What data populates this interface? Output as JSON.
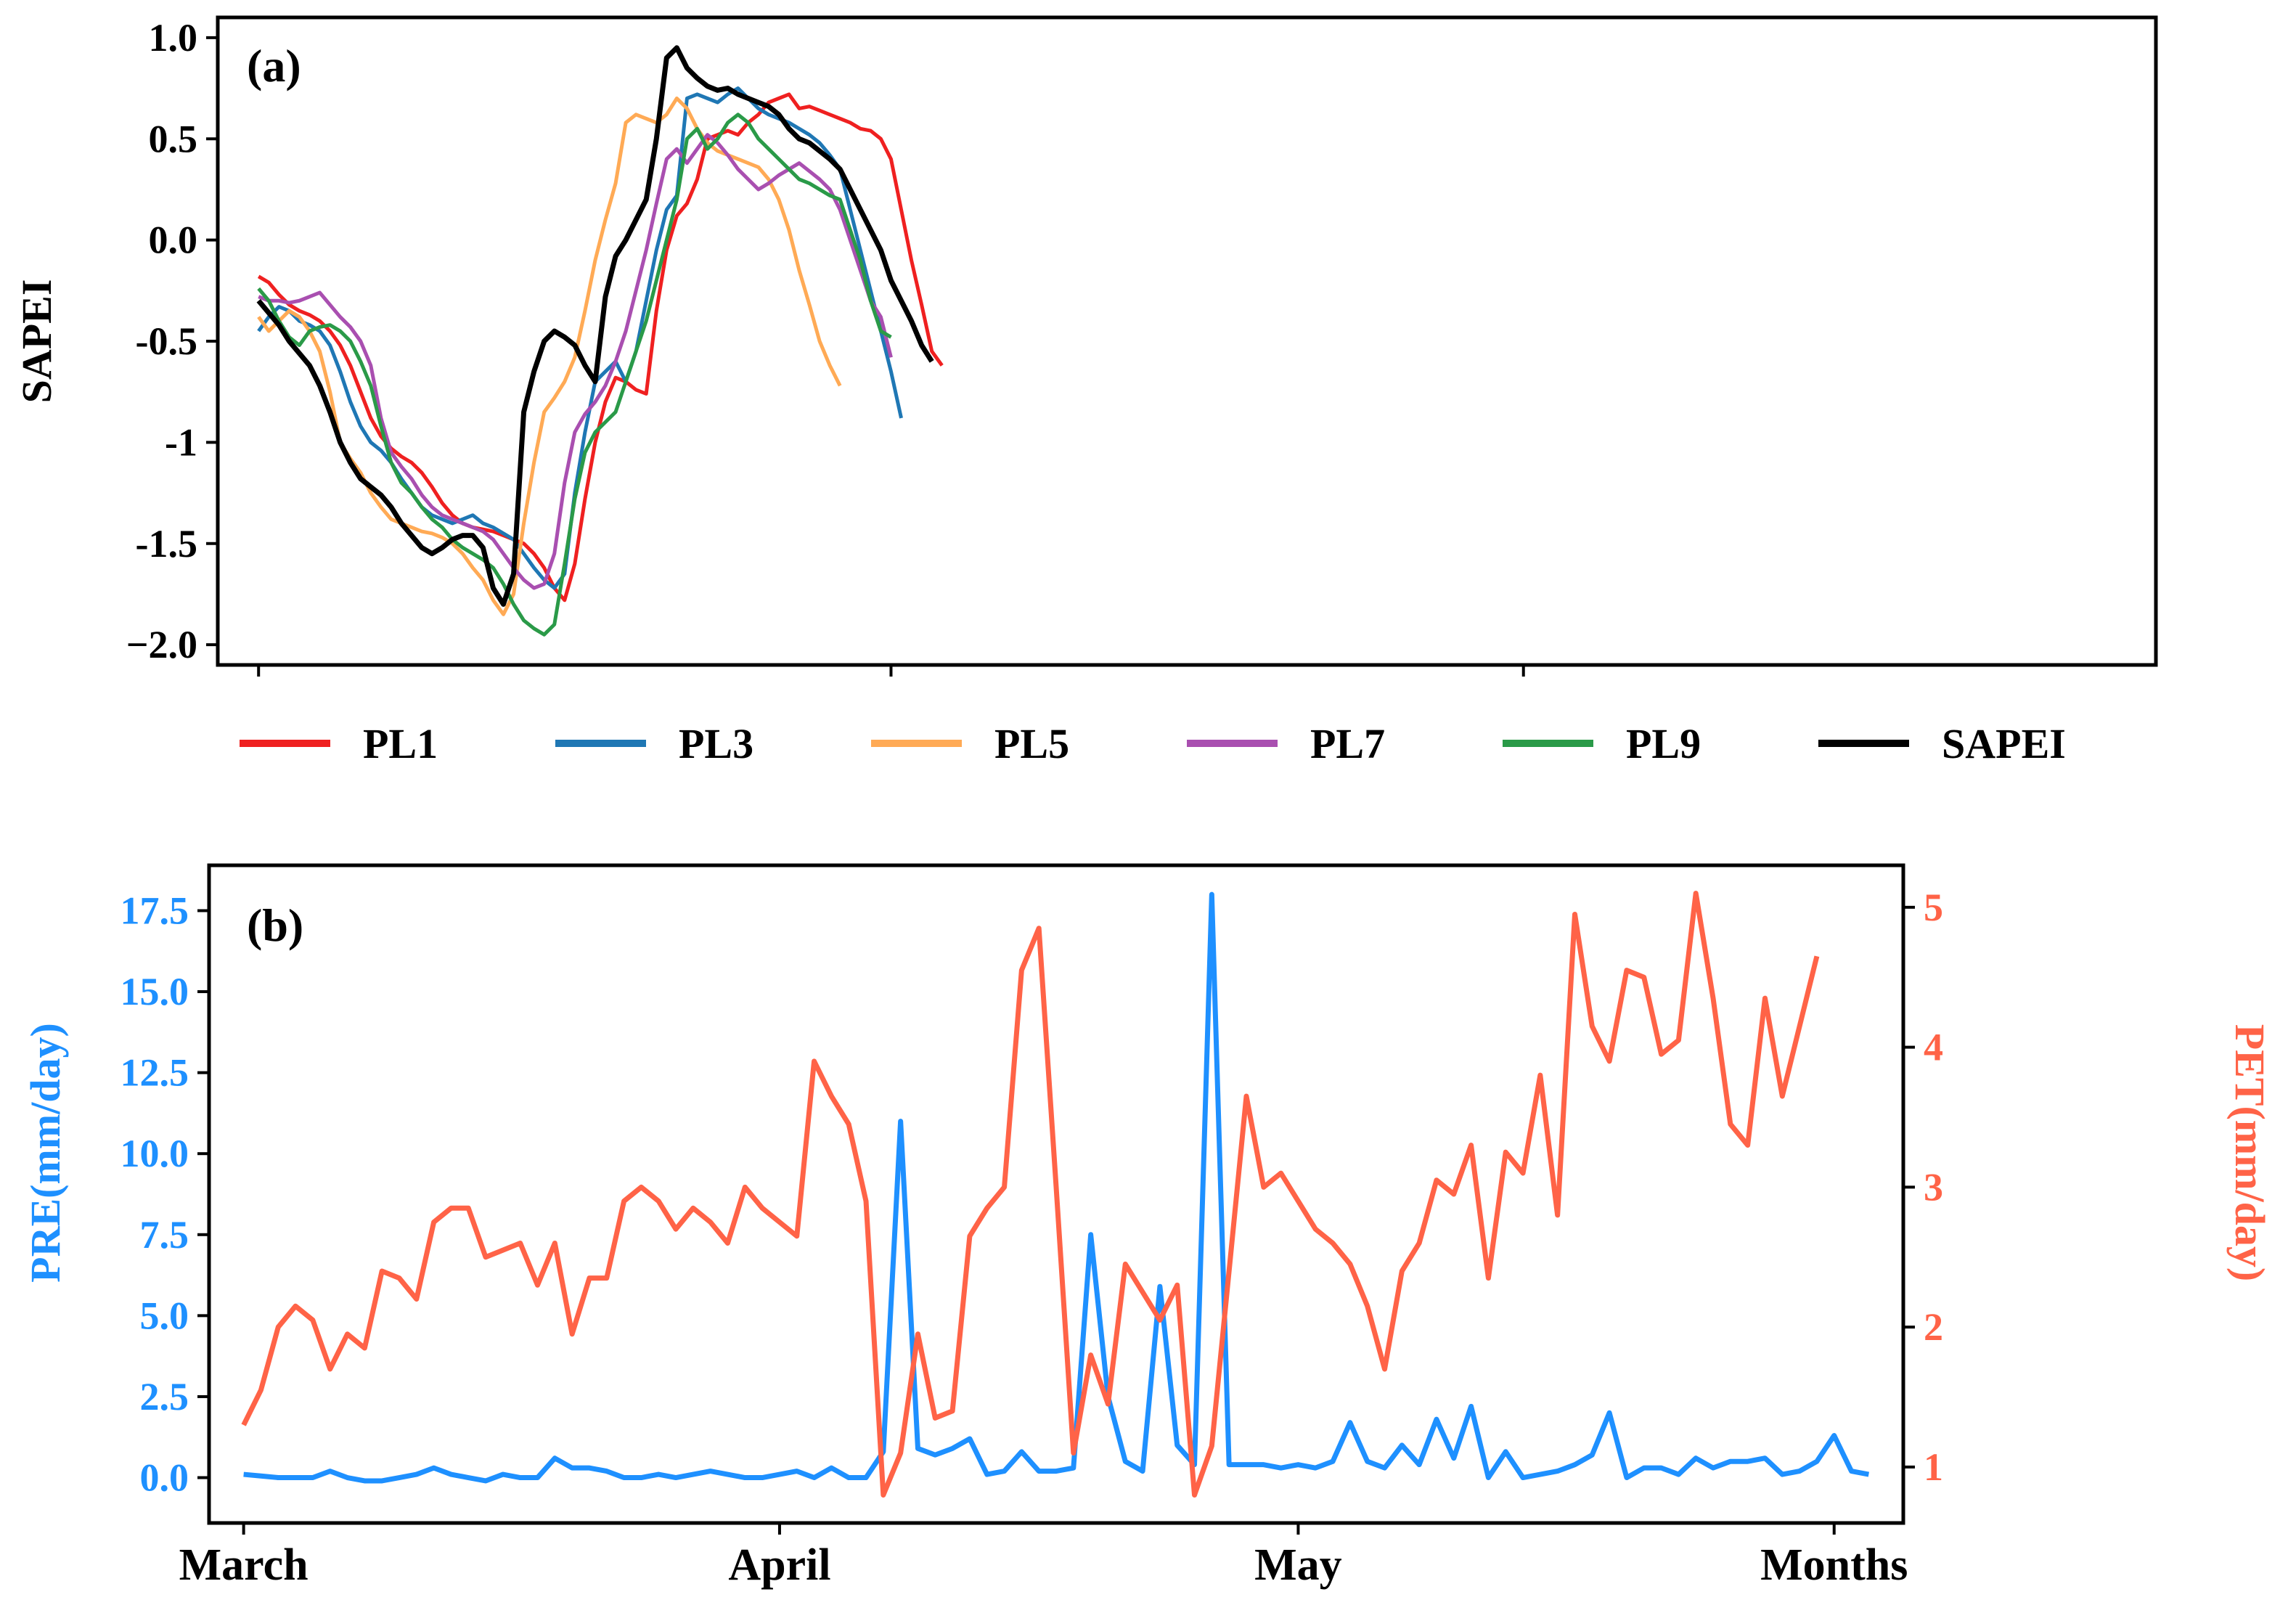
{
  "chart_data": [
    {
      "type": "line",
      "panel_label": "(a)",
      "ylabel": "SAPEI",
      "ylim": [
        -2.1,
        1.1
      ],
      "yticks": [
        {
          "value": 1.0,
          "label": "1.0"
        },
        {
          "value": 0.5,
          "label": "0.5"
        },
        {
          "value": 0.0,
          "label": "0.0"
        },
        {
          "value": -0.5,
          "label": "-0.5"
        },
        {
          "value": -1.0,
          "label": "-1"
        },
        {
          "value": -1.5,
          "label": "-1.5"
        },
        {
          "value": -2.0,
          "label": "−2.0"
        }
      ],
      "xlim": [
        -2,
        93
      ],
      "xticks": [
        0,
        31,
        62
      ],
      "x_step": 0.5,
      "legend": {
        "placement": "below"
      },
      "series": [
        {
          "name": "PL1",
          "color": "#ef2020",
          "values": [
            -0.18,
            -0.21,
            -0.27,
            -0.32,
            -0.35,
            -0.37,
            -0.4,
            -0.45,
            -0.52,
            -0.62,
            -0.75,
            -0.88,
            -0.97,
            -1.03,
            -1.07,
            -1.1,
            -1.15,
            -1.22,
            -1.3,
            -1.36,
            -1.4,
            -1.42,
            -1.43,
            -1.44,
            -1.46,
            -1.48,
            -1.5,
            -1.55,
            -1.62,
            -1.72,
            -1.78,
            -1.6,
            -1.28,
            -1.0,
            -0.8,
            -0.68,
            -0.7,
            -0.74,
            -0.76,
            -0.35,
            -0.05,
            0.12,
            0.18,
            0.3,
            0.5,
            0.52,
            0.54,
            0.52,
            0.58,
            0.62,
            0.68,
            0.7,
            0.72,
            0.65,
            0.66,
            0.64,
            0.62,
            0.6,
            0.58,
            0.55,
            0.54,
            0.5,
            0.4,
            0.15,
            -0.1,
            -0.32,
            -0.55,
            -0.62
          ]
        },
        {
          "name": "PL3",
          "color": "#1f77b4",
          "values": [
            -0.45,
            -0.38,
            -0.33,
            -0.35,
            -0.4,
            -0.42,
            -0.45,
            -0.52,
            -0.65,
            -0.8,
            -0.92,
            -1.0,
            -1.04,
            -1.1,
            -1.18,
            -1.25,
            -1.32,
            -1.36,
            -1.38,
            -1.4,
            -1.38,
            -1.36,
            -1.4,
            -1.42,
            -1.45,
            -1.48,
            -1.55,
            -1.62,
            -1.68,
            -1.72,
            -1.65,
            -1.25,
            -0.95,
            -0.7,
            -0.65,
            -0.6,
            -0.7,
            -0.55,
            -0.3,
            -0.05,
            0.15,
            0.22,
            0.7,
            0.72,
            0.7,
            0.68,
            0.72,
            0.75,
            0.7,
            0.65,
            0.62,
            0.6,
            0.58,
            0.55,
            0.52,
            0.48,
            0.42,
            0.35,
            0.15,
            -0.05,
            -0.25,
            -0.45,
            -0.65,
            -0.88
          ]
        },
        {
          "name": "PL5",
          "color": "#ffaa55",
          "values": [
            -0.38,
            -0.45,
            -0.4,
            -0.35,
            -0.38,
            -0.45,
            -0.55,
            -0.75,
            -1.0,
            -1.08,
            -1.15,
            -1.25,
            -1.32,
            -1.38,
            -1.4,
            -1.42,
            -1.44,
            -1.45,
            -1.47,
            -1.5,
            -1.55,
            -1.62,
            -1.68,
            -1.78,
            -1.85,
            -1.75,
            -1.4,
            -1.1,
            -0.85,
            -0.78,
            -0.7,
            -0.58,
            -0.35,
            -0.1,
            0.1,
            0.28,
            0.58,
            0.62,
            0.6,
            0.58,
            0.62,
            0.7,
            0.65,
            0.55,
            0.48,
            0.44,
            0.42,
            0.4,
            0.38,
            0.36,
            0.3,
            0.2,
            0.05,
            -0.15,
            -0.32,
            -0.5,
            -0.62,
            -0.72
          ]
        },
        {
          "name": "PL7",
          "color": "#a94fb0",
          "values": [
            -0.28,
            -0.3,
            -0.3,
            -0.31,
            -0.3,
            -0.28,
            -0.26,
            -0.32,
            -0.38,
            -0.43,
            -0.5,
            -0.62,
            -0.88,
            -1.05,
            -1.12,
            -1.18,
            -1.26,
            -1.32,
            -1.36,
            -1.38,
            -1.4,
            -1.42,
            -1.44,
            -1.48,
            -1.55,
            -1.62,
            -1.68,
            -1.72,
            -1.7,
            -1.55,
            -1.2,
            -0.95,
            -0.86,
            -0.8,
            -0.72,
            -0.6,
            -0.45,
            -0.25,
            -0.05,
            0.18,
            0.4,
            0.45,
            0.38,
            0.45,
            0.52,
            0.48,
            0.42,
            0.35,
            0.3,
            0.25,
            0.28,
            0.32,
            0.35,
            0.38,
            0.34,
            0.3,
            0.25,
            0.15,
            0.0,
            -0.15,
            -0.3,
            -0.38,
            -0.58
          ]
        },
        {
          "name": "PL9",
          "color": "#2a9a48",
          "values": [
            -0.24,
            -0.3,
            -0.4,
            -0.48,
            -0.52,
            -0.45,
            -0.43,
            -0.42,
            -0.45,
            -0.5,
            -0.6,
            -0.72,
            -0.92,
            -1.1,
            -1.2,
            -1.25,
            -1.32,
            -1.38,
            -1.42,
            -1.48,
            -1.52,
            -1.55,
            -1.58,
            -1.62,
            -1.7,
            -1.8,
            -1.88,
            -1.92,
            -1.95,
            -1.9,
            -1.6,
            -1.28,
            -1.05,
            -0.95,
            -0.9,
            -0.85,
            -0.7,
            -0.55,
            -0.4,
            -0.2,
            0.0,
            0.2,
            0.5,
            0.55,
            0.45,
            0.5,
            0.58,
            0.62,
            0.58,
            0.5,
            0.45,
            0.4,
            0.35,
            0.3,
            0.28,
            0.25,
            0.22,
            0.2,
            0.05,
            -0.1,
            -0.3,
            -0.45,
            -0.48
          ]
        },
        {
          "name": "SAPEI",
          "color": "#000000",
          "values": [
            -0.3,
            -0.36,
            -0.42,
            -0.5,
            -0.56,
            -0.62,
            -0.72,
            -0.85,
            -1.0,
            -1.1,
            -1.18,
            -1.22,
            -1.26,
            -1.32,
            -1.4,
            -1.46,
            -1.52,
            -1.55,
            -1.52,
            -1.48,
            -1.46,
            -1.46,
            -1.52,
            -1.72,
            -1.8,
            -1.65,
            -0.85,
            -0.65,
            -0.5,
            -0.45,
            -0.48,
            -0.52,
            -0.62,
            -0.7,
            -0.28,
            -0.08,
            0.0,
            0.1,
            0.2,
            0.5,
            0.9,
            0.95,
            0.85,
            0.8,
            0.76,
            0.74,
            0.75,
            0.72,
            0.7,
            0.68,
            0.66,
            0.62,
            0.55,
            0.5,
            0.48,
            0.44,
            0.4,
            0.35,
            0.25,
            0.15,
            0.05,
            -0.05,
            -0.2,
            -0.3,
            -0.4,
            -0.52,
            -0.6
          ]
        }
      ]
    },
    {
      "type": "line",
      "panel_label": "(b)",
      "ylabel": "PRE(mm/day)",
      "ylabel_right": "PET(mm/day)",
      "color_left": "#1e90ff",
      "color_right": "#ff6347",
      "ylim": [
        -1.4,
        18.9
      ],
      "ylim_right": [
        0.6,
        5.3
      ],
      "yticks": [
        {
          "value": 0.0,
          "label": "0.0"
        },
        {
          "value": 2.5,
          "label": "2.5"
        },
        {
          "value": 5.0,
          "label": "5.0"
        },
        {
          "value": 7.5,
          "label": "7.5"
        },
        {
          "value": 10.0,
          "label": "10.0"
        },
        {
          "value": 12.5,
          "label": "12.5"
        },
        {
          "value": 15.0,
          "label": "15.0"
        },
        {
          "value": 17.5,
          "label": "17.5"
        }
      ],
      "yticks_right": [
        {
          "value": 1,
          "label": "1"
        },
        {
          "value": 2,
          "label": "2"
        },
        {
          "value": 3,
          "label": "3"
        },
        {
          "value": 4,
          "label": "4"
        },
        {
          "value": 5,
          "label": "5"
        }
      ],
      "xlim": [
        -2,
        96
      ],
      "xticks": [
        {
          "value": 0,
          "label": "March"
        },
        {
          "value": 31,
          "label": "April"
        },
        {
          "value": 61,
          "label": "May"
        },
        {
          "value": 92,
          "label": "Months"
        }
      ],
      "series": [
        {
          "name": "PRE",
          "axis": "left",
          "color": "#1e90ff",
          "values": [
            0.1,
            0.05,
            0.0,
            0.0,
            0.0,
            0.2,
            0.0,
            -0.1,
            -0.1,
            0.0,
            0.1,
            0.3,
            0.1,
            0.0,
            -0.1,
            0.1,
            0.0,
            0.0,
            0.6,
            0.3,
            0.3,
            0.2,
            0.0,
            0.0,
            0.1,
            0.0,
            0.1,
            0.2,
            0.1,
            0.0,
            0.0,
            0.1,
            0.2,
            0.0,
            0.3,
            0.0,
            0.0,
            0.8,
            11.0,
            0.9,
            0.7,
            0.9,
            1.2,
            0.1,
            0.2,
            0.8,
            0.2,
            0.2,
            0.3,
            7.5,
            2.5,
            0.5,
            0.2,
            5.9,
            1.0,
            0.4,
            18.0,
            0.4,
            0.4,
            0.4,
            0.3,
            0.4,
            0.3,
            0.5,
            1.7,
            0.5,
            0.3,
            1.0,
            0.4,
            1.8,
            0.6,
            2.2,
            0.0,
            0.8,
            0.0,
            0.1,
            0.2,
            0.4,
            0.7,
            2.0,
            0.0,
            0.3,
            0.3,
            0.1,
            0.6,
            0.3,
            0.5,
            0.5,
            0.6,
            0.1,
            0.2,
            0.5,
            1.3,
            0.2,
            0.1
          ]
        },
        {
          "name": "PET",
          "axis": "right",
          "color": "#ff6347",
          "values": [
            1.3,
            1.55,
            2.0,
            2.15,
            2.05,
            1.7,
            1.95,
            1.85,
            2.4,
            2.35,
            2.2,
            2.75,
            2.85,
            2.85,
            2.5,
            2.55,
            2.6,
            2.3,
            2.6,
            1.95,
            2.35,
            2.35,
            2.9,
            3.0,
            2.9,
            2.7,
            2.85,
            2.75,
            2.6,
            3.0,
            2.85,
            2.75,
            2.65,
            3.9,
            3.65,
            3.45,
            2.9,
            0.8,
            1.1,
            1.95,
            1.35,
            1.4,
            2.65,
            2.85,
            3.0,
            4.55,
            4.85,
            3.0,
            1.1,
            1.8,
            1.45,
            2.45,
            2.25,
            2.05,
            2.3,
            0.8,
            1.15,
            2.4,
            3.65,
            3.0,
            3.1,
            2.9,
            2.7,
            2.6,
            2.45,
            2.15,
            1.7,
            2.4,
            2.6,
            3.05,
            2.95,
            3.3,
            2.35,
            3.25,
            3.1,
            3.8,
            2.8,
            4.95,
            4.15,
            3.9,
            4.55,
            4.5,
            3.95,
            4.05,
            5.1,
            4.35,
            3.45,
            3.3,
            4.35,
            3.65,
            4.15,
            4.65
          ]
        }
      ]
    }
  ]
}
